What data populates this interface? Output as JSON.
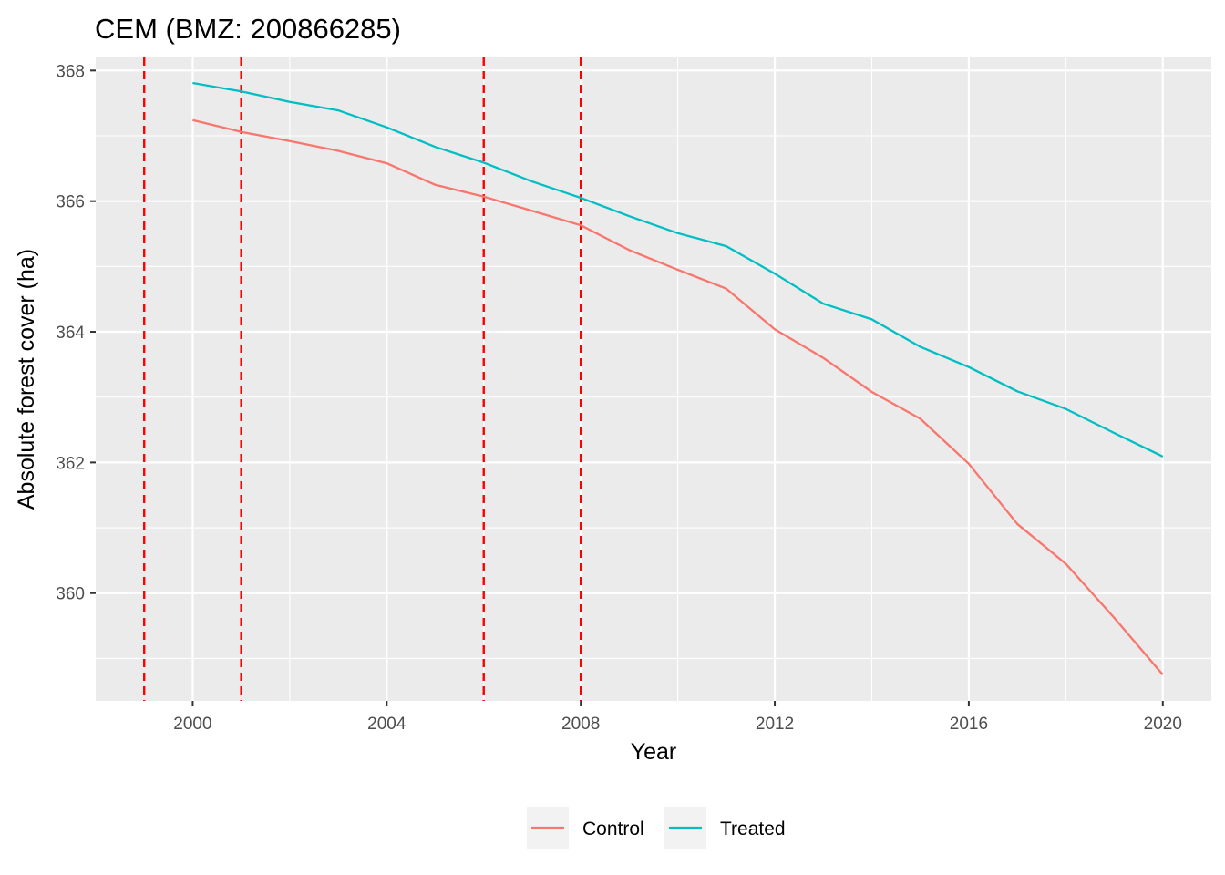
{
  "chart_data": {
    "type": "line",
    "title": "CEM (BMZ: 200866285)",
    "xlabel": "Year",
    "ylabel": "Absolute forest cover (ha)",
    "xlim": [
      1998,
      2021
    ],
    "ylim": [
      358.35,
      368.2
    ],
    "x_ticks": [
      2000,
      2004,
      2008,
      2012,
      2016,
      2020
    ],
    "x_tick_labels": [
      "2000",
      "2004",
      "2008",
      "2012",
      "2016",
      "2020"
    ],
    "y_ticks": [
      360,
      362,
      364,
      366,
      368
    ],
    "y_tick_labels": [
      "360",
      "362",
      "364",
      "366",
      "368"
    ],
    "grid": true,
    "legend_position": "bottom",
    "x": [
      2000,
      2001,
      2002,
      2003,
      2004,
      2005,
      2006,
      2007,
      2008,
      2009,
      2010,
      2011,
      2012,
      2013,
      2014,
      2015,
      2016,
      2017,
      2018,
      2019,
      2020
    ],
    "series": [
      {
        "name": "Control",
        "color": "#F8766D",
        "values": [
          367.24,
          367.06,
          366.92,
          366.77,
          366.58,
          366.25,
          366.07,
          365.85,
          365.63,
          365.25,
          364.95,
          364.66,
          364.04,
          363.6,
          363.08,
          362.67,
          361.98,
          361.06,
          360.45,
          359.62,
          358.75
        ]
      },
      {
        "name": "Treated",
        "color": "#00BFC4",
        "values": [
          367.81,
          367.68,
          367.52,
          367.39,
          367.13,
          366.83,
          366.59,
          366.3,
          366.05,
          365.77,
          365.51,
          365.31,
          364.89,
          364.43,
          364.19,
          363.77,
          363.46,
          363.09,
          362.82,
          362.45,
          362.09
        ]
      }
    ],
    "vlines": {
      "x": [
        1999,
        2001,
        2006,
        2008
      ],
      "color": "#FF0000",
      "style": "dashed"
    }
  }
}
